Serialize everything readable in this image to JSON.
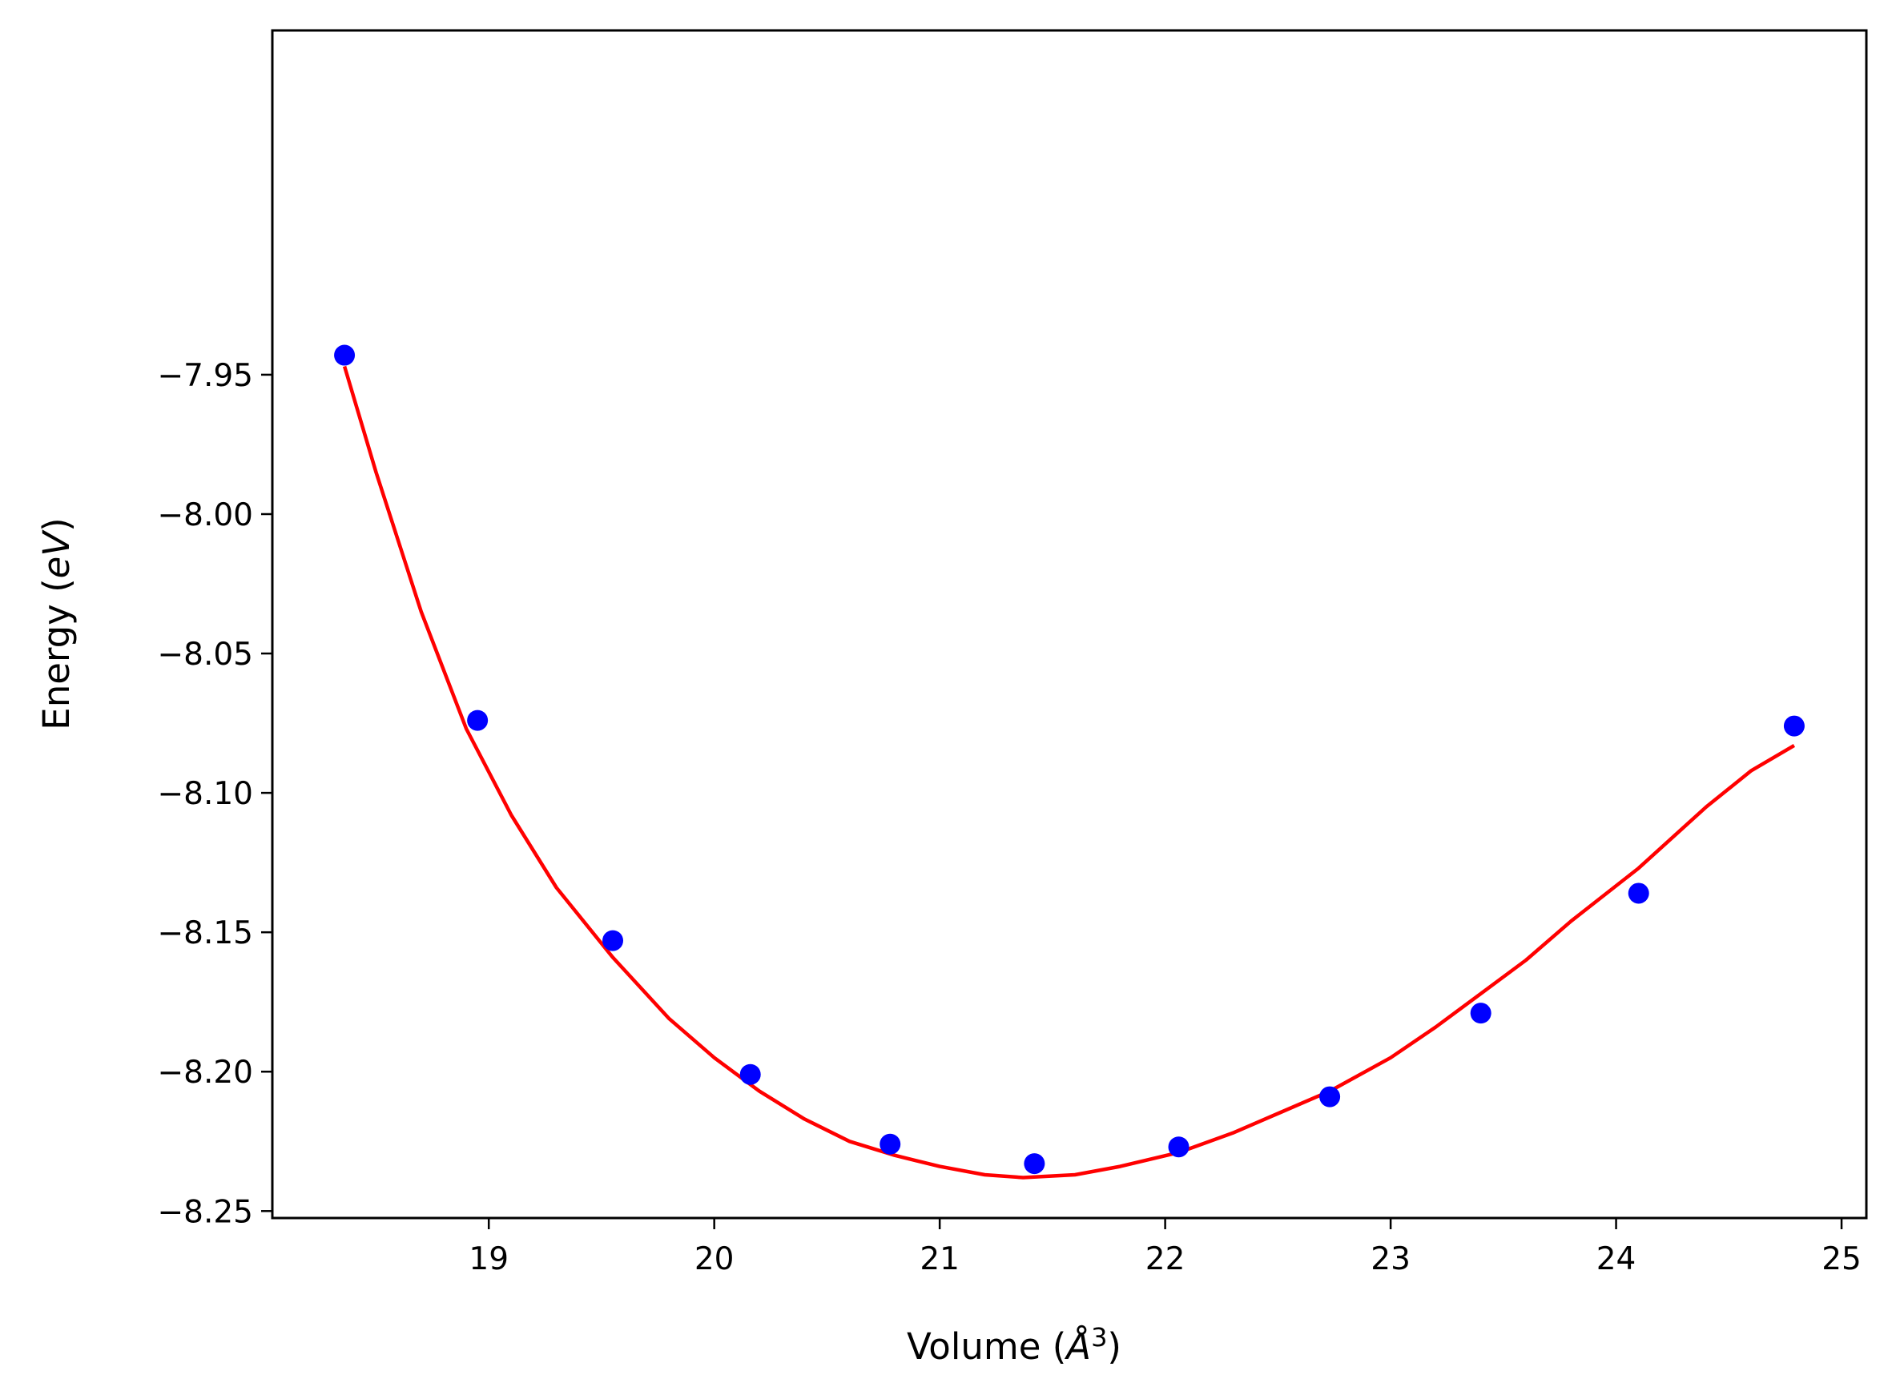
{
  "chart_data": {
    "type": "scatter",
    "title": "",
    "xlabel": "Volume",
    "ylabel": "Energy",
    "xlim": [
      18.04,
      25.11
    ],
    "ylim": [
      -8.2525,
      -7.8265
    ],
    "x_ticks": [
      19,
      20,
      21,
      22,
      23,
      24,
      25
    ],
    "x_tick_labels": [
      "19",
      "20",
      "21",
      "22",
      "23",
      "24",
      "25"
    ],
    "y_ticks": [
      -7.95,
      -8.0,
      -8.05,
      -8.1,
      -8.15,
      -8.2,
      -8.25
    ],
    "y_tick_labels": [
      "−7.95",
      "−8.00",
      "−8.05",
      "−8.10",
      "−8.15",
      "−8.20",
      "−8.25"
    ],
    "grid": false,
    "legend": "none",
    "series": [
      {
        "kind": "scatter",
        "color": "#0000ff",
        "x": [
          18.36,
          18.95,
          19.55,
          20.16,
          20.78,
          21.42,
          22.06,
          22.73,
          23.4,
          24.1,
          24.79
        ],
        "y": [
          -7.943,
          -8.074,
          -8.153,
          -8.201,
          -8.226,
          -8.233,
          -8.227,
          -8.209,
          -8.179,
          -8.136,
          -8.076
        ]
      },
      {
        "kind": "line",
        "color": "#ff0000",
        "x": [
          18.36,
          18.5,
          18.7,
          18.9,
          19.1,
          19.3,
          19.55,
          19.8,
          20.0,
          20.2,
          20.4,
          20.6,
          20.8,
          21.0,
          21.2,
          21.37,
          21.6,
          21.8,
          22.06,
          22.3,
          22.5,
          22.73,
          23.0,
          23.2,
          23.4,
          23.6,
          23.8,
          24.1,
          24.4,
          24.6,
          24.79
        ],
        "y": [
          -7.947,
          -7.985,
          -8.035,
          -8.077,
          -8.108,
          -8.134,
          -8.159,
          -8.181,
          -8.195,
          -8.207,
          -8.217,
          -8.225,
          -8.23,
          -8.234,
          -8.237,
          -8.238,
          -8.237,
          -8.234,
          -8.229,
          -8.222,
          -8.215,
          -8.207,
          -8.195,
          -8.184,
          -8.172,
          -8.16,
          -8.146,
          -8.127,
          -8.105,
          -8.092,
          -8.083
        ]
      }
    ]
  }
}
